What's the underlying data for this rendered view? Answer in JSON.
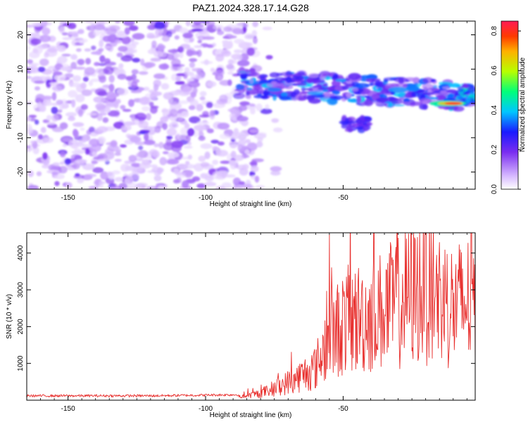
{
  "title": "PAZ1.2024.328.17.14.G28",
  "chart_data": [
    {
      "type": "heatmap",
      "xlabel": "Height of straight line (km)",
      "ylabel": "Frequency (Hz)",
      "xlim": [
        -165,
        -2
      ],
      "ylim": [
        -25,
        24
      ],
      "xticks": [
        -150,
        -100,
        -50
      ],
      "yticks": [
        -20,
        -10,
        0,
        10,
        20
      ],
      "colorbar": {
        "label": "Normalized spectral amplitude",
        "range": [
          0,
          0.85
        ],
        "ticks": [
          "0.0",
          "0.2",
          "0.4",
          "0.6",
          "0.8"
        ]
      },
      "features": [
        {
          "x_range": [
            -165,
            -80
          ],
          "freq_range": [
            -25,
            24
          ],
          "amplitude": 0.1
        },
        {
          "x_range": [
            -88,
            -2
          ],
          "freq_center": [
            6,
            4
          ],
          "amplitude": 0.3
        },
        {
          "x_range": [
            -50,
            -40
          ],
          "freq_center": -6,
          "amplitude": 0.25
        },
        {
          "x_range": [
            -15,
            -5
          ],
          "freq_center": 0,
          "amplitude": 0.85
        }
      ]
    },
    {
      "type": "line",
      "xlabel": "Height of straight line (km)",
      "ylabel": "SNR (10 * v/v)",
      "xlim": [
        -165,
        -2
      ],
      "ylim": [
        0,
        4550
      ],
      "xticks": [
        -150,
        -100,
        -50
      ],
      "yticks": [
        1000,
        2000,
        3000,
        4000
      ],
      "color": "#e8302e",
      "series_profile": [
        {
          "x": -165,
          "y": 120
        },
        {
          "x": -120,
          "y": 120
        },
        {
          "x": -88,
          "y": 150
        },
        {
          "x": -80,
          "y": 300
        },
        {
          "x": -70,
          "y": 600
        },
        {
          "x": -60,
          "y": 900
        },
        {
          "x": -56,
          "y": 1500
        },
        {
          "x": -50,
          "y": 1800
        },
        {
          "x": -40,
          "y": 1900
        },
        {
          "x": -30,
          "y": 2200
        },
        {
          "x": -20,
          "y": 2600
        },
        {
          "x": -10,
          "y": 2100
        },
        {
          "x": -2,
          "y": 2300
        }
      ],
      "peaks": [
        {
          "x": -55,
          "y": 4500
        },
        {
          "x": -31,
          "y": 3900
        },
        {
          "x": -20,
          "y": 4550
        },
        {
          "x": -18,
          "y": 4550
        },
        {
          "x": -3,
          "y": 3300
        }
      ]
    }
  ]
}
